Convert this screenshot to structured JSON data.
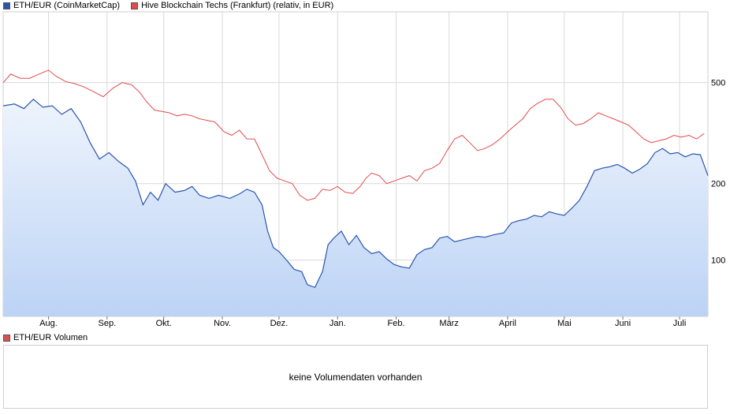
{
  "legend": [
    {
      "label": "ETH/EUR (CoinMarketCap)",
      "color": "#2a56ad"
    },
    {
      "label": "Hive Blockchain Techs (Frankfurt) (relativ, in EUR)",
      "color": "#e24b4b"
    }
  ],
  "volume": {
    "legend_label": "ETH/EUR Volumen",
    "legend_color": "#d95050",
    "message": "keine Volumendaten vorhanden"
  },
  "chart_data": {
    "type": "area",
    "x_ticks": [
      "Aug.",
      "Sep.",
      "Okt.",
      "Nov.",
      "Dez.",
      "Jan.",
      "Feb.",
      "März",
      "April",
      "Mai",
      "Juni",
      "Juli"
    ],
    "y_scale": "log",
    "y_ticks": [
      100,
      200,
      500
    ],
    "ylim": [
      60,
      950
    ],
    "grid": true,
    "legend_position": "top-left",
    "series": [
      {
        "name": "ETH/EUR (CoinMarketCap)",
        "style": "area",
        "color": "#2a56ad",
        "fill_top": "#eef4fd",
        "fill_bottom": "#bcd3f5",
        "points": [
          [
            "Jul 8",
            405
          ],
          [
            "Jul 14",
            412
          ],
          [
            "Jul 19",
            395
          ],
          [
            "Jul 24",
            430
          ],
          [
            "Jul 29",
            400
          ],
          [
            "Aug 3",
            405
          ],
          [
            "Aug 8",
            375
          ],
          [
            "Aug 13",
            395
          ],
          [
            "Aug 18",
            350
          ],
          [
            "Aug 23",
            290
          ],
          [
            "Aug 28",
            250
          ],
          [
            "Sep 2",
            265
          ],
          [
            "Sep 7",
            245
          ],
          [
            "Sep 12",
            230
          ],
          [
            "Sep 16",
            205
          ],
          [
            "Sep 20",
            165
          ],
          [
            "Sep 24",
            185
          ],
          [
            "Sep 28",
            172
          ],
          [
            "Oct 2",
            200
          ],
          [
            "Oct 7",
            185
          ],
          [
            "Oct 12",
            188
          ],
          [
            "Oct 16",
            195
          ],
          [
            "Oct 20",
            180
          ],
          [
            "Oct 25",
            175
          ],
          [
            "Oct 30",
            180
          ],
          [
            "Nov 5",
            175
          ],
          [
            "Nov 10",
            182
          ],
          [
            "Nov 14",
            190
          ],
          [
            "Nov 18",
            185
          ],
          [
            "Nov 22",
            165
          ],
          [
            "Nov 25",
            130
          ],
          [
            "Nov 28",
            112
          ],
          [
            "Dec 1",
            108
          ],
          [
            "Dec 5",
            100
          ],
          [
            "Dec 9",
            92
          ],
          [
            "Dec 13",
            90
          ],
          [
            "Dec 16",
            80
          ],
          [
            "Dec 20",
            78
          ],
          [
            "Dec 24",
            90
          ],
          [
            "Dec 27",
            115
          ],
          [
            "Dec 30",
            122
          ],
          [
            "Jan 3",
            130
          ],
          [
            "Jan 7",
            115
          ],
          [
            "Jan 11",
            125
          ],
          [
            "Jan 15",
            112
          ],
          [
            "Jan 19",
            106
          ],
          [
            "Jan 23",
            108
          ],
          [
            "Jan 27",
            101
          ],
          [
            "Jan 31",
            96
          ],
          [
            "Feb 4",
            94
          ],
          [
            "Feb 8",
            93
          ],
          [
            "Feb 12",
            105
          ],
          [
            "Feb 16",
            110
          ],
          [
            "Feb 20",
            112
          ],
          [
            "Feb 24",
            122
          ],
          [
            "Feb 28",
            124
          ],
          [
            "Mar 4",
            118
          ],
          [
            "Mar 8",
            120
          ],
          [
            "Mar 12",
            122
          ],
          [
            "Mar 16",
            124
          ],
          [
            "Mar 20",
            123
          ],
          [
            "Mar 25",
            126
          ],
          [
            "Mar 30",
            128
          ],
          [
            "Apr 3",
            140
          ],
          [
            "Apr 7",
            143
          ],
          [
            "Apr 11",
            145
          ],
          [
            "Apr 15",
            150
          ],
          [
            "Apr 19",
            148
          ],
          [
            "Apr 23",
            155
          ],
          [
            "Apr 27",
            152
          ],
          [
            "May 1",
            150
          ],
          [
            "May 5",
            160
          ],
          [
            "May 9",
            172
          ],
          [
            "May 13",
            195
          ],
          [
            "May 17",
            225
          ],
          [
            "May 21",
            230
          ],
          [
            "May 25",
            233
          ],
          [
            "May 29",
            238
          ],
          [
            "Jun 2",
            230
          ],
          [
            "Jun 6",
            220
          ],
          [
            "Jun 10",
            228
          ],
          [
            "Jun 14",
            240
          ],
          [
            "Jun 18",
            265
          ],
          [
            "Jun 22",
            275
          ],
          [
            "Jun 26",
            262
          ],
          [
            "Jun 30",
            265
          ],
          [
            "Jul 4",
            255
          ],
          [
            "Jul 8",
            262
          ],
          [
            "Jul 12",
            260
          ],
          [
            "Jul 16",
            215
          ]
        ]
      },
      {
        "name": "Hive Blockchain Techs (Frankfurt) (relativ, in EUR)",
        "style": "line",
        "color": "#e24b4b",
        "points": [
          [
            "Jul 8",
            500
          ],
          [
            "Jul 12",
            540
          ],
          [
            "Jul 17",
            520
          ],
          [
            "Jul 22",
            520
          ],
          [
            "Jul 27",
            540
          ],
          [
            "Aug 1",
            560
          ],
          [
            "Aug 5",
            530
          ],
          [
            "Aug 10",
            505
          ],
          [
            "Aug 15",
            495
          ],
          [
            "Aug 20",
            480
          ],
          [
            "Aug 25",
            460
          ],
          [
            "Aug 30",
            440
          ],
          [
            "Sep 4",
            475
          ],
          [
            "Sep 9",
            500
          ],
          [
            "Sep 14",
            490
          ],
          [
            "Sep 18",
            460
          ],
          [
            "Sep 22",
            420
          ],
          [
            "Sep 26",
            390
          ],
          [
            "Sep 30",
            385
          ],
          [
            "Oct 4",
            380
          ],
          [
            "Oct 8",
            370
          ],
          [
            "Oct 12",
            375
          ],
          [
            "Oct 16",
            370
          ],
          [
            "Oct 20",
            360
          ],
          [
            "Oct 24",
            355
          ],
          [
            "Oct 28",
            350
          ],
          [
            "Nov 2",
            320
          ],
          [
            "Nov 6",
            310
          ],
          [
            "Nov 10",
            325
          ],
          [
            "Nov 14",
            300
          ],
          [
            "Nov 18",
            300
          ],
          [
            "Nov 22",
            260
          ],
          [
            "Nov 26",
            225
          ],
          [
            "Nov 30",
            210
          ],
          [
            "Dec 4",
            205
          ],
          [
            "Dec 8",
            200
          ],
          [
            "Dec 12",
            180
          ],
          [
            "Dec 16",
            172
          ],
          [
            "Dec 20",
            175
          ],
          [
            "Dec 24",
            190
          ],
          [
            "Dec 28",
            188
          ],
          [
            "Jan 1",
            195
          ],
          [
            "Jan 5",
            185
          ],
          [
            "Jan 9",
            183
          ],
          [
            "Jan 13",
            195
          ],
          [
            "Jan 16",
            210
          ],
          [
            "Jan 19",
            220
          ],
          [
            "Jan 23",
            215
          ],
          [
            "Jan 27",
            200
          ],
          [
            "Jan 31",
            205
          ],
          [
            "Feb 4",
            210
          ],
          [
            "Feb 8",
            215
          ],
          [
            "Feb 12",
            205
          ],
          [
            "Feb 16",
            225
          ],
          [
            "Feb 20",
            230
          ],
          [
            "Feb 24",
            240
          ],
          [
            "Feb 28",
            270
          ],
          [
            "Mar 4",
            300
          ],
          [
            "Mar 8",
            310
          ],
          [
            "Mar 12",
            290
          ],
          [
            "Mar 16",
            270
          ],
          [
            "Mar 20",
            275
          ],
          [
            "Mar 24",
            285
          ],
          [
            "Mar 28",
            300
          ],
          [
            "Apr 1",
            320
          ],
          [
            "Apr 5",
            340
          ],
          [
            "Apr 9",
            360
          ],
          [
            "Apr 13",
            395
          ],
          [
            "Apr 17",
            415
          ],
          [
            "Apr 21",
            430
          ],
          [
            "Apr 25",
            430
          ],
          [
            "Apr 29",
            400
          ],
          [
            "May 3",
            360
          ],
          [
            "May 7",
            340
          ],
          [
            "May 11",
            345
          ],
          [
            "May 15",
            360
          ],
          [
            "May 19",
            380
          ],
          [
            "May 23",
            370
          ],
          [
            "May 27",
            360
          ],
          [
            "May 31",
            350
          ],
          [
            "Jun 4",
            340
          ],
          [
            "Jun 8",
            320
          ],
          [
            "Jun 12",
            300
          ],
          [
            "Jun 16",
            290
          ],
          [
            "Jun 20",
            295
          ],
          [
            "Jun 24",
            300
          ],
          [
            "Jun 28",
            310
          ],
          [
            "Jul 2",
            305
          ],
          [
            "Jul 6",
            310
          ],
          [
            "Jul 10",
            300
          ],
          [
            "Jul 14",
            315
          ]
        ]
      }
    ]
  }
}
